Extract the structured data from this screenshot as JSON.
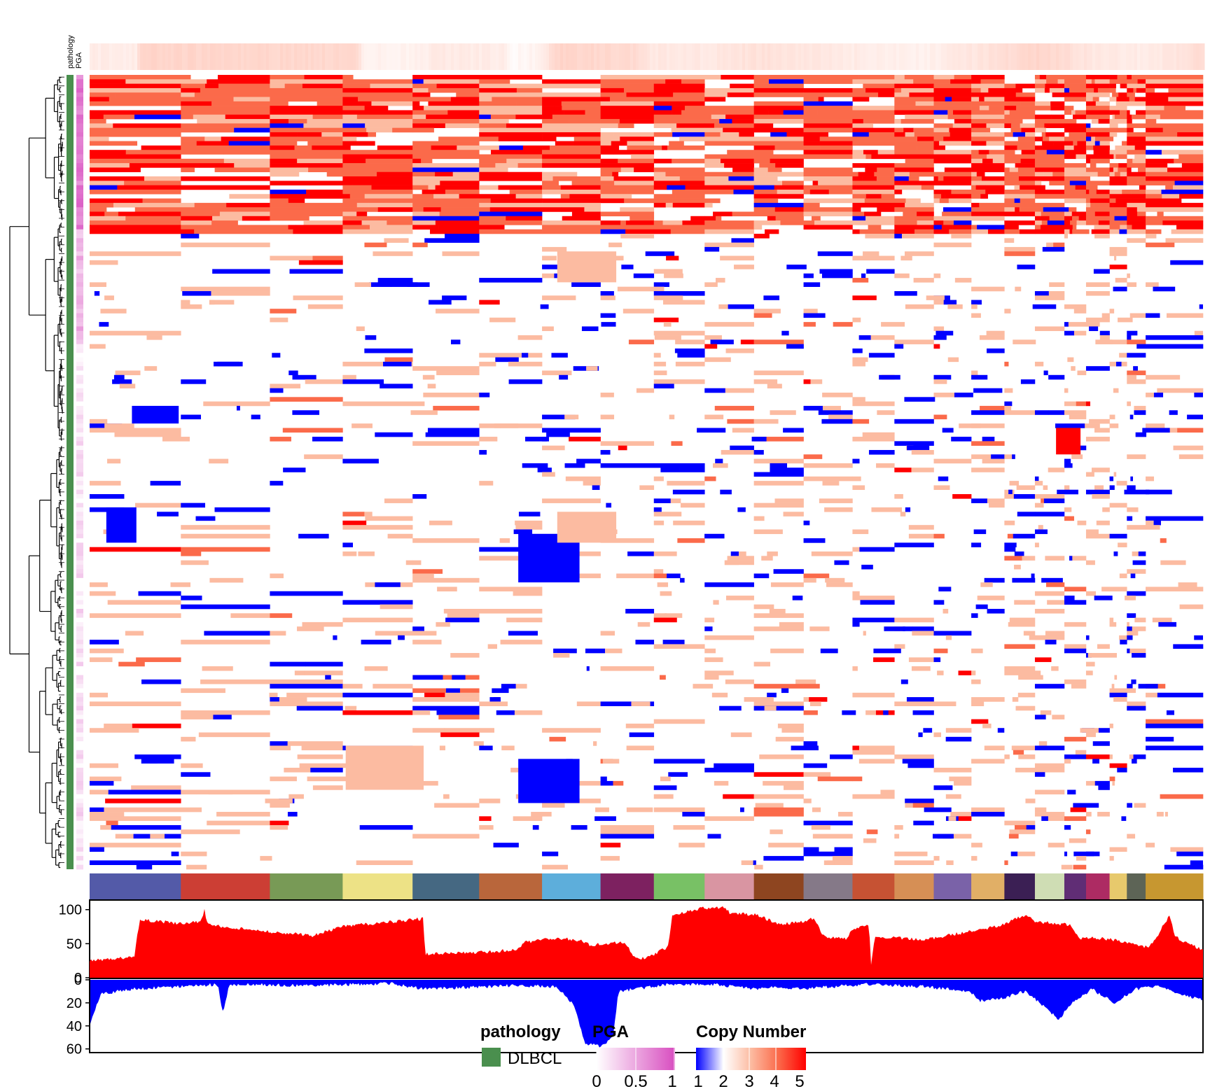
{
  "chart_data": {
    "type": "heatmap",
    "title": "",
    "annotation_tracks": [
      "pathology",
      "PGA"
    ],
    "chromosome_colors": [
      "#535aa8",
      "#cc3e34",
      "#789a56",
      "#ede286",
      "#456882",
      "#b9663b",
      "#5daedb",
      "#7d2160",
      "#78c165",
      "#d995a2",
      "#8e4520",
      "#857988",
      "#c65233",
      "#d68f55",
      "#7a62a8",
      "#e1af66",
      "#3b1f54",
      "#cfddb4",
      "#602d75",
      "#ad2b63",
      "#e7c96c",
      "#5d6456",
      "#c79730"
    ],
    "chromosome_widths": [
      248,
      242,
      198,
      190,
      181,
      171,
      159,
      145,
      138,
      134,
      135,
      133,
      114,
      107,
      102,
      90,
      83,
      80,
      59,
      64,
      47,
      51,
      156
    ],
    "copy_number_colors": {
      "1": "#0000ff",
      "2": "#ffffff",
      "3": "#fcbba1",
      "4": "#fb6a4a",
      "5": "#ff0000"
    },
    "gain_frequency_axis": {
      "ticks": [
        "100",
        "50",
        "0"
      ],
      "max": 110,
      "color": "#ff0000"
    },
    "loss_frequency_axis": {
      "ticks": [
        "0",
        "20",
        "40",
        "60"
      ],
      "max": 62,
      "color": "#0000ff"
    },
    "gain_profile_anchors": [
      [
        0,
        25
      ],
      [
        0.04,
        30
      ],
      [
        0.045,
        85
      ],
      [
        0.08,
        80
      ],
      [
        0.1,
        82
      ],
      [
        0.103,
        100
      ],
      [
        0.106,
        78
      ],
      [
        0.16,
        68
      ],
      [
        0.2,
        62
      ],
      [
        0.23,
        76
      ],
      [
        0.27,
        82
      ],
      [
        0.3,
        87
      ],
      [
        0.301,
        35
      ],
      [
        0.36,
        38
      ],
      [
        0.385,
        42
      ],
      [
        0.39,
        52
      ],
      [
        0.42,
        58
      ],
      [
        0.44,
        55
      ],
      [
        0.45,
        48
      ],
      [
        0.48,
        52
      ],
      [
        0.49,
        30
      ],
      [
        0.5,
        28
      ],
      [
        0.52,
        46
      ],
      [
        0.523,
        92
      ],
      [
        0.55,
        102
      ],
      [
        0.57,
        104
      ],
      [
        0.575,
        95
      ],
      [
        0.6,
        92
      ],
      [
        0.62,
        78
      ],
      [
        0.64,
        82
      ],
      [
        0.65,
        88
      ],
      [
        0.66,
        60
      ],
      [
        0.68,
        58
      ],
      [
        0.685,
        72
      ],
      [
        0.7,
        78
      ],
      [
        0.702,
        15
      ],
      [
        0.705,
        60
      ],
      [
        0.75,
        56
      ],
      [
        0.77,
        62
      ],
      [
        0.8,
        70
      ],
      [
        0.82,
        78
      ],
      [
        0.84,
        92
      ],
      [
        0.85,
        82
      ],
      [
        0.88,
        78
      ],
      [
        0.89,
        58
      ],
      [
        0.91,
        58
      ],
      [
        0.93,
        52
      ],
      [
        0.95,
        45
      ],
      [
        0.96,
        60
      ],
      [
        0.965,
        80
      ],
      [
        0.97,
        90
      ],
      [
        0.975,
        60
      ],
      [
        1,
        40
      ]
    ],
    "loss_profile_anchors": [
      [
        0,
        40
      ],
      [
        0.01,
        12
      ],
      [
        0.04,
        8
      ],
      [
        0.08,
        6
      ],
      [
        0.115,
        4
      ],
      [
        0.12,
        30
      ],
      [
        0.125,
        4
      ],
      [
        0.2,
        5
      ],
      [
        0.27,
        3
      ],
      [
        0.3,
        8
      ],
      [
        0.38,
        5
      ],
      [
        0.42,
        6
      ],
      [
        0.435,
        22
      ],
      [
        0.445,
        55
      ],
      [
        0.46,
        58
      ],
      [
        0.47,
        50
      ],
      [
        0.475,
        10
      ],
      [
        0.52,
        4
      ],
      [
        0.56,
        4
      ],
      [
        0.6,
        8
      ],
      [
        0.615,
        6
      ],
      [
        0.63,
        8
      ],
      [
        0.7,
        4
      ],
      [
        0.75,
        6
      ],
      [
        0.79,
        10
      ],
      [
        0.8,
        18
      ],
      [
        0.82,
        16
      ],
      [
        0.84,
        10
      ],
      [
        0.86,
        25
      ],
      [
        0.87,
        35
      ],
      [
        0.88,
        22
      ],
      [
        0.9,
        8
      ],
      [
        0.92,
        20
      ],
      [
        0.94,
        8
      ],
      [
        0.96,
        6
      ],
      [
        0.98,
        12
      ],
      [
        1,
        18
      ]
    ],
    "pga_profile_anchors": [
      [
        0,
        0.15
      ],
      [
        0.04,
        0.15
      ],
      [
        0.045,
        0.35
      ],
      [
        0.24,
        0.32
      ],
      [
        0.245,
        0.1
      ],
      [
        0.3,
        0.12
      ],
      [
        0.305,
        0.18
      ],
      [
        0.37,
        0.15
      ],
      [
        0.38,
        0.05
      ],
      [
        0.4,
        0.1
      ],
      [
        0.42,
        0.35
      ],
      [
        0.49,
        0.3
      ],
      [
        0.5,
        0.2
      ],
      [
        0.55,
        0.18
      ],
      [
        0.6,
        0.25
      ],
      [
        0.7,
        0.15
      ],
      [
        0.75,
        0.12
      ],
      [
        0.8,
        0.22
      ],
      [
        0.85,
        0.35
      ],
      [
        0.9,
        0.2
      ],
      [
        0.95,
        0.15
      ],
      [
        1,
        0.3
      ]
    ],
    "legends": {
      "pathology": {
        "title": "pathology",
        "items": [
          {
            "label": "DLBCL",
            "color": "#4a8f4e"
          }
        ]
      },
      "pga": {
        "title": "PGA",
        "ticks": [
          "0",
          "0.5",
          "1"
        ],
        "colors": [
          "#ffffff",
          "#d84ec0"
        ]
      },
      "copy_number": {
        "title": "Copy Number",
        "ticks": [
          "1",
          "2",
          "3",
          "4",
          "5"
        ],
        "colors": [
          "#0000ff",
          "#ffffff",
          "#fcbba1",
          "#fb6a4a",
          "#ff0000"
        ]
      }
    },
    "pathology_color": "#4a8f4e"
  }
}
